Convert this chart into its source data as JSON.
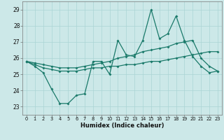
{
  "xlabel": "Humidex (Indice chaleur)",
  "xlim": [
    -0.5,
    23.5
  ],
  "ylim": [
    22.5,
    29.5
  ],
  "yticks": [
    23,
    24,
    25,
    26,
    27,
    28,
    29
  ],
  "xticks": [
    0,
    1,
    2,
    3,
    4,
    5,
    6,
    7,
    8,
    9,
    10,
    11,
    12,
    13,
    14,
    15,
    16,
    17,
    18,
    19,
    20,
    21,
    22,
    23
  ],
  "background_color": "#cce8e8",
  "grid_color": "#aad4d4",
  "line_color": "#1a7a6a",
  "x": [
    0,
    1,
    2,
    3,
    4,
    5,
    6,
    7,
    8,
    9,
    10,
    11,
    12,
    13,
    14,
    15,
    16,
    17,
    18,
    19,
    20,
    21,
    22,
    23
  ],
  "y_jagged": [
    25.8,
    25.5,
    25.1,
    24.1,
    23.2,
    23.2,
    23.7,
    23.8,
    25.8,
    25.8,
    25.0,
    27.1,
    26.2,
    26.1,
    27.1,
    29.0,
    27.2,
    27.5,
    28.6,
    27.1,
    26.1,
    25.5,
    25.1,
    25.2
  ],
  "y_diag": [
    25.8,
    25.7,
    25.6,
    25.5,
    25.4,
    25.4,
    25.4,
    25.5,
    25.6,
    25.7,
    25.8,
    26.0,
    26.1,
    26.2,
    26.4,
    26.5,
    26.6,
    26.7,
    26.9,
    27.0,
    27.1,
    26.0,
    25.5,
    25.2
  ],
  "y_flat": [
    25.8,
    25.6,
    25.4,
    25.3,
    25.2,
    25.2,
    25.2,
    25.3,
    25.4,
    25.4,
    25.5,
    25.5,
    25.6,
    25.6,
    25.7,
    25.8,
    25.8,
    25.9,
    26.0,
    26.1,
    26.2,
    26.3,
    26.4,
    26.4
  ]
}
